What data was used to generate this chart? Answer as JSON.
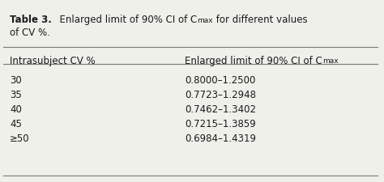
{
  "title_bold": "Table 3.",
  "title_normal": "  Enlarged limit of 90% CI of C",
  "title_sub": "max",
  "title_after": " for different values",
  "title_line2": "of CV %.",
  "col1_header": "Intrasubject CV %",
  "col2_header": "Enlarged limit of 90% CI of C",
  "col2_header_sub": "max",
  "rows": [
    [
      "30",
      "0.8000–1.2500"
    ],
    [
      "35",
      "0.7723–1.2948"
    ],
    [
      "40",
      "0.7462–1.3402"
    ],
    [
      "45",
      "0.7215–1.3859"
    ],
    [
      "≥50",
      "0.6984–1.4319"
    ]
  ],
  "bg_color": "#f0f0eb",
  "text_color": "#1a1a1a",
  "line_color": "#777777",
  "font_size": 8.5,
  "title_font_size": 8.5,
  "sub_font_size": 6.5,
  "fig_width": 4.74,
  "fig_height": 2.26,
  "dpi": 100
}
